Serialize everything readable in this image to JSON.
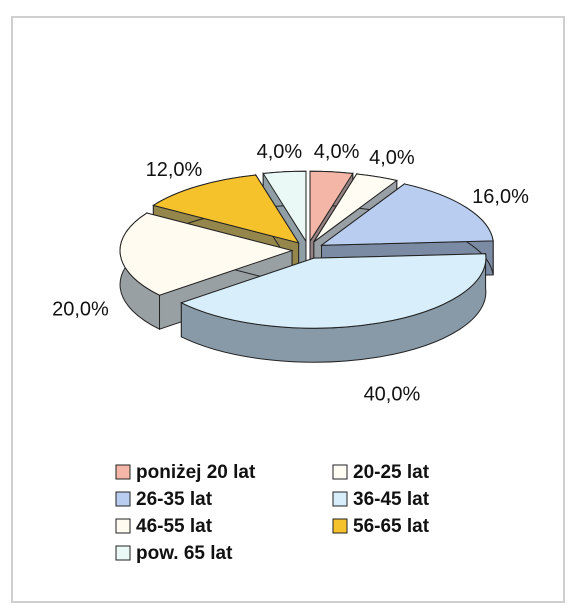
{
  "chart_data": {
    "type": "pie",
    "categories": [
      "poniżej 20 lat",
      "20-25 lat",
      "26-35 lat",
      "36-45 lat",
      "46-55 lat",
      "56-65 lat",
      "pow. 65 lat"
    ],
    "values": [
      4,
      4,
      16,
      40,
      20,
      12,
      4
    ],
    "value_labels": [
      "4,0%",
      "4,0%",
      "16,0%",
      "40,0%",
      "20,0%",
      "12,0%",
      "4,0%"
    ],
    "colors": [
      "#f4b6a6",
      "#fffcf4",
      "#b9cdf0",
      "#d8effb",
      "#fffbf1",
      "#f6c22c",
      "#eaf9f5"
    ]
  }
}
